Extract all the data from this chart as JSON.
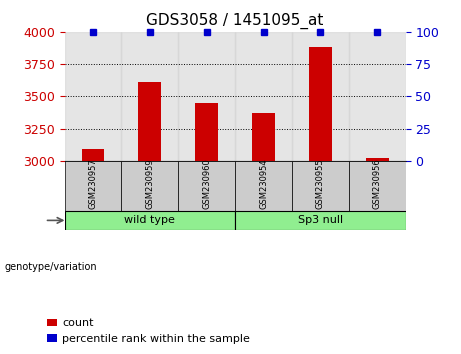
{
  "title": "GDS3058 / 1451095_at",
  "categories": [
    "GSM230957",
    "GSM230959",
    "GSM230960",
    "GSM230954",
    "GSM230955",
    "GSM230956"
  ],
  "bar_values": [
    3090,
    3610,
    3450,
    3370,
    3880,
    3020
  ],
  "percentile_values": [
    100,
    100,
    100,
    100,
    100,
    100
  ],
  "ylim_left": [
    3000,
    4000
  ],
  "ylim_right": [
    0,
    100
  ],
  "yticks_left": [
    3000,
    3250,
    3500,
    3750,
    4000
  ],
  "yticks_right": [
    0,
    25,
    50,
    75,
    100
  ],
  "bar_color": "#cc0000",
  "dot_color": "#0000cc",
  "bar_width": 0.4,
  "group_labels": [
    "wild type",
    "Sp3 null"
  ],
  "group_ranges": [
    [
      0,
      2
    ],
    [
      3,
      5
    ]
  ],
  "group_colors": [
    "#90ee90",
    "#90ee90"
  ],
  "genotype_label": "genotype/variation",
  "legend_count_label": "count",
  "legend_percentile_label": "percentile rank within the sample",
  "tick_color_left": "#cc0000",
  "tick_color_right": "#0000cc",
  "title_fontsize": 11,
  "axis_fontsize": 9,
  "legend_fontsize": 8
}
